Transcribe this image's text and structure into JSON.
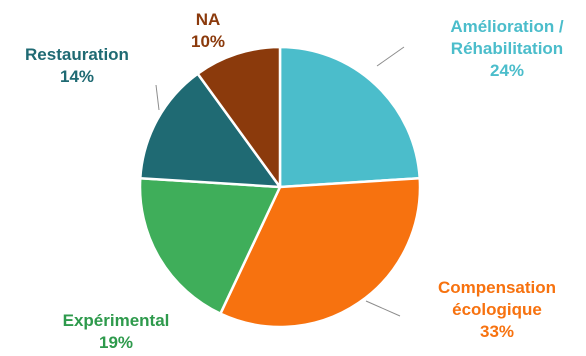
{
  "chart_data": {
    "type": "pie",
    "title": "",
    "start": "12 o'clock",
    "direction": "clockwise",
    "legend": "none",
    "slices": [
      {
        "lines": [
          "Amélioration /",
          "Réhabilitation"
        ],
        "pct": "24%",
        "value": 24,
        "color": "#4BBDCB",
        "label_color": "#4BBDCB"
      },
      {
        "lines": [
          "Compensation",
          "écologique"
        ],
        "pct": "33%",
        "value": 33,
        "color": "#F7720F",
        "label_color": "#F7720F"
      },
      {
        "lines": [
          "Expérimental"
        ],
        "pct": "19%",
        "value": 19,
        "color": "#3FAE5A",
        "label_color": "#2E9A4C"
      },
      {
        "lines": [
          "Restauration"
        ],
        "pct": "14%",
        "value": 14,
        "color": "#1F6A73",
        "label_color": "#1F6A73"
      },
      {
        "lines": [
          "NA"
        ],
        "pct": "10%",
        "value": 10,
        "color": "#8B3A0C",
        "label_color": "#8B3A0C"
      }
    ]
  }
}
